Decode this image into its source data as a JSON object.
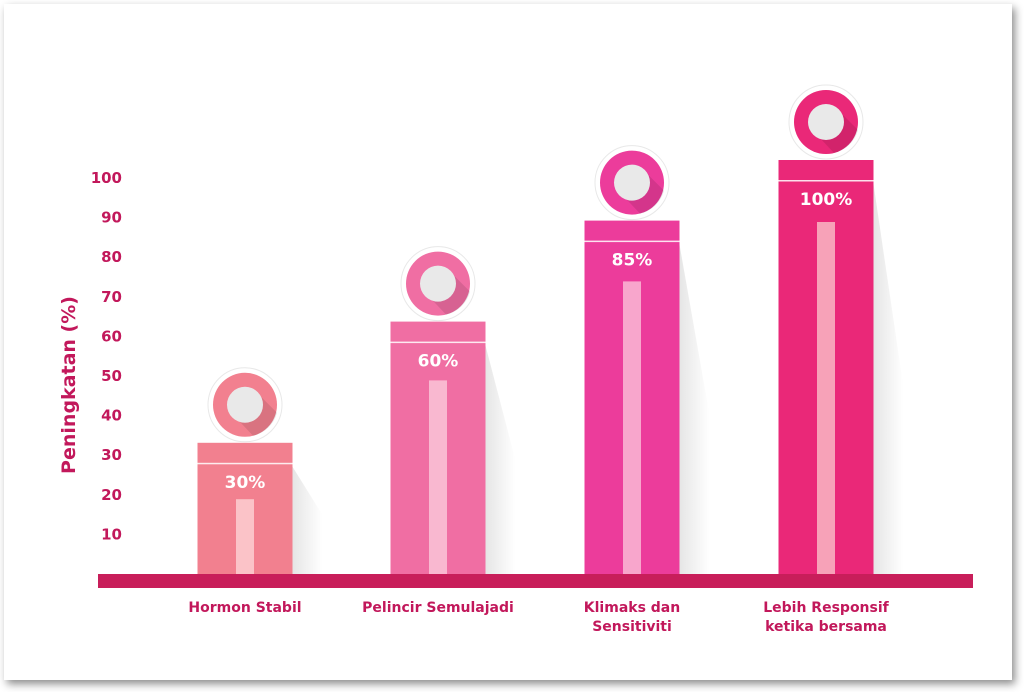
{
  "chart_data": {
    "type": "bar",
    "ylabel": "Peningkatan (%)",
    "xlabel": "",
    "yticks": [
      10,
      20,
      30,
      40,
      50,
      60,
      70,
      80,
      90,
      100
    ],
    "ylim": [
      0,
      100
    ],
    "categories": [
      [
        "Hormon Stabil"
      ],
      [
        "Pelincir Semulajadi"
      ],
      [
        "Klimaks dan",
        "Sensitiviti"
      ],
      [
        "Lebih Responsif",
        "ketika bersama"
      ]
    ],
    "values": [
      30,
      60,
      85,
      100
    ],
    "value_labels": [
      "30%",
      "60%",
      "85%",
      "100%"
    ],
    "colors": [
      "#f2808f",
      "#f06ea3",
      "#ec3c9b",
      "#ea2878"
    ],
    "inner_bar_colors": [
      "#fbc3c8",
      "#f9b8d0",
      "#f8a6cc",
      "#f7a2b8"
    ],
    "baseline_color": "#c81e5a",
    "accent_color": "#c2185b",
    "icon": "circle-badge-icon"
  }
}
